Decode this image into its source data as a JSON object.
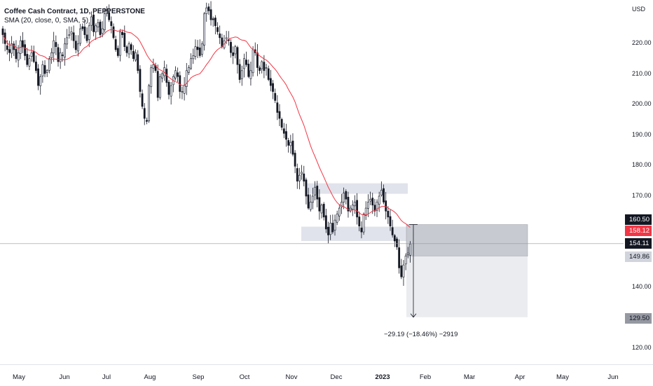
{
  "legend": {
    "title": "Coffee Cash Contract, 1D, PEPPERSTONE",
    "indicator": "SMA (20, close, 0, SMA, 5)"
  },
  "price_axis": {
    "currency": "USD",
    "ticks": [
      "220.00",
      "210.00",
      "200.00",
      "190.00",
      "180.00",
      "170.00",
      "140.00",
      "130.00",
      "120.00"
    ],
    "tags": {
      "target_top": "160.50",
      "sma_value": "158.12",
      "last_price": "154.11",
      "entry": "149.86",
      "target_bottom": "129.50"
    }
  },
  "time_axis": {
    "labels": [
      "May",
      "Jun",
      "Jul",
      "Aug",
      "Sep",
      "Oct",
      "Nov",
      "Dec",
      "2023",
      "Feb",
      "Mar",
      "Apr",
      "May",
      "Jun"
    ]
  },
  "measure_label": "−29.19 (−18.46%) −2919",
  "colors": {
    "up": "#f0f3fa",
    "down": "#131722",
    "sma": "#f23645",
    "last_price_tag": "#131722",
    "sma_tag": "#f23645",
    "zone": "#d1d4dc",
    "entry_tag": "#d1d4dc",
    "target_tag": "#9598a1"
  },
  "chart_data": {
    "type": "candlestick",
    "title": "Coffee Cash Contract, 1D, PEPPERSTONE",
    "ylabel": "USD",
    "ylim": [
      115,
      228
    ],
    "sma_period": 20,
    "closes": [
      224,
      221,
      219,
      218,
      221,
      219,
      216,
      218,
      222,
      220,
      217,
      214,
      216,
      218,
      215,
      212,
      207,
      210,
      214,
      211,
      212,
      216,
      218,
      222,
      220,
      215,
      218,
      217,
      221,
      223,
      224,
      225,
      222,
      219,
      221,
      226,
      226,
      224,
      222,
      227,
      230,
      225,
      227,
      228,
      224,
      226,
      231,
      232,
      229,
      227,
      223,
      219,
      217,
      225,
      224,
      220,
      218,
      221,
      219,
      216,
      218,
      212,
      205,
      200,
      196,
      195,
      207,
      213,
      214,
      212,
      203,
      210,
      211,
      213,
      208,
      204,
      207,
      210,
      212,
      210,
      205,
      205,
      207,
      212,
      213,
      216,
      217,
      220,
      219,
      217,
      221,
      231,
      233,
      232,
      229,
      229,
      227,
      225,
      223,
      220,
      222,
      223,
      222,
      218,
      217,
      220,
      214,
      209,
      212,
      216,
      214,
      210,
      212,
      219,
      218,
      213,
      212,
      215,
      212,
      213,
      209,
      207,
      205,
      202,
      198,
      196,
      193,
      191,
      189,
      187,
      188,
      184,
      180,
      175,
      177,
      178,
      175,
      170,
      166,
      168,
      170,
      173,
      169,
      165,
      167,
      163,
      159,
      157,
      161,
      158,
      162,
      164,
      166,
      168,
      171,
      169,
      165,
      166,
      167,
      168,
      163,
      160,
      158,
      164,
      166,
      168,
      169,
      167,
      165,
      168,
      170,
      172,
      168,
      165,
      163,
      160,
      157,
      155,
      153,
      146,
      143,
      147,
      150,
      151,
      154
    ]
  }
}
